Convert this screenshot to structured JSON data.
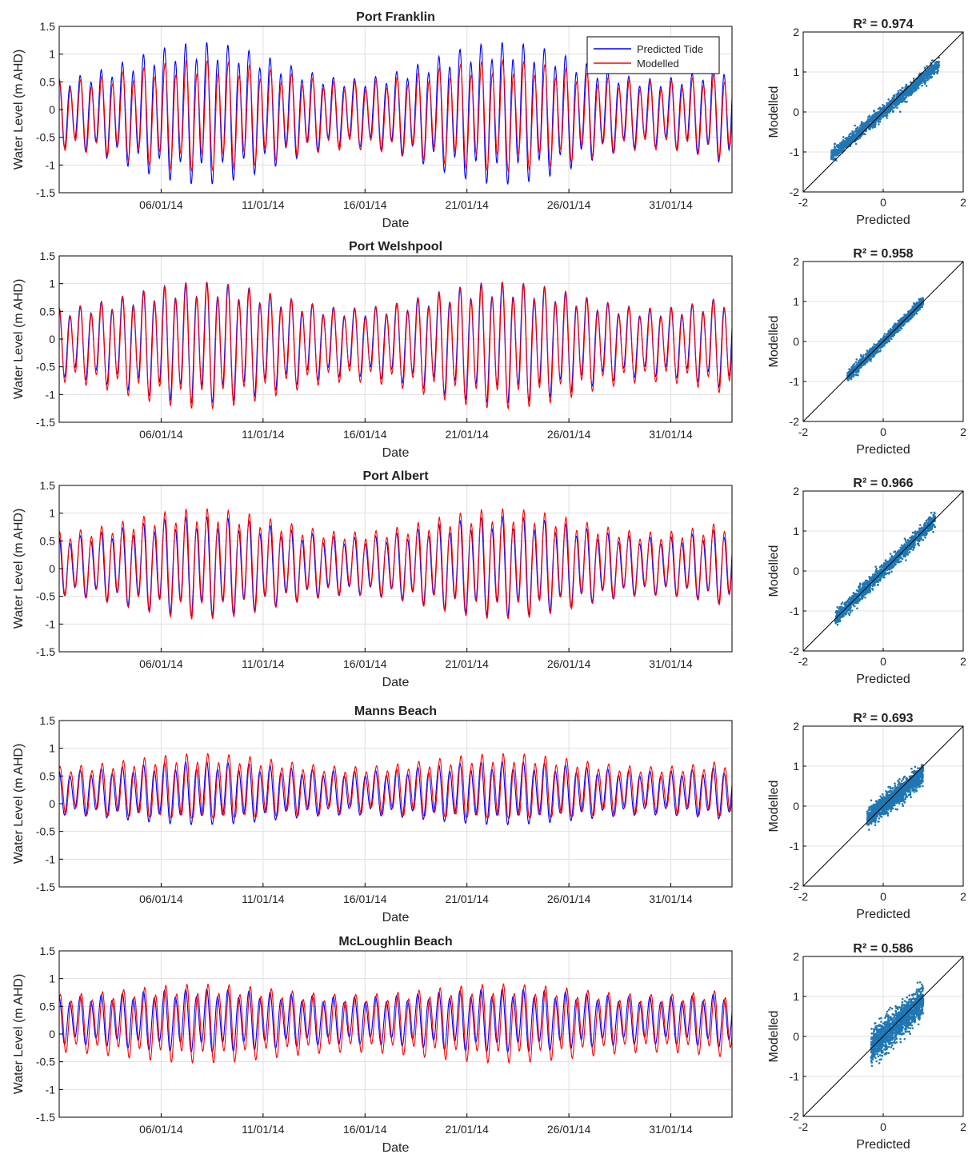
{
  "colors": {
    "predicted": "#0000ff",
    "modelled": "#ff0000",
    "scatter": "#1f77b4",
    "grid": "#e0e0e0",
    "axis": "#000000"
  },
  "legend": {
    "placement": "top-right",
    "entries": [
      "Predicted Tide",
      "Modelled"
    ]
  },
  "chart_data": [
    {
      "type": "line",
      "title": "Port Franklin",
      "xlabel": "Date",
      "ylabel": "Water Level (m AHD)",
      "xlim": [
        "01/01/14",
        "03/02/14"
      ],
      "ylim": [
        -1.5,
        1.5
      ],
      "yticks": [
        "-1.5",
        "-1",
        "-0.5",
        "0",
        "0.5",
        "1",
        "1.5"
      ],
      "xticks": [
        "06/01/14",
        "11/01/14",
        "16/01/14",
        "21/01/14",
        "26/01/14",
        "31/01/14"
      ],
      "grid": true,
      "series": [
        {
          "name": "Predicted Tide",
          "mean": -0.05,
          "amp_spring": 1.35,
          "amp_neap": 0.65,
          "period_h": 12.42,
          "phase_h": 0,
          "floor": null
        },
        {
          "name": "Modelled",
          "mean": -0.1,
          "amp_spring": 1.05,
          "amp_neap": 0.65,
          "period_h": 12.42,
          "phase_h": 0.6,
          "floor": null
        }
      ]
    },
    {
      "type": "scatter",
      "title": "R² = 0.974",
      "xlabel": "Predicted",
      "ylabel": "Modelled",
      "xlim": [
        -2,
        2
      ],
      "ylim": [
        -2,
        2
      ],
      "xticks": [
        "-2",
        "0",
        "2"
      ],
      "yticks": [
        "-2",
        "-1",
        "0",
        "1",
        "2"
      ],
      "range": [
        -1.3,
        1.4
      ],
      "slope": 0.85,
      "spread": 0.08,
      "diagonal": true
    },
    {
      "type": "line",
      "title": "Port Welshpool",
      "xlabel": "Date",
      "ylabel": "Water Level (m AHD)",
      "xlim": [
        "01/01/14",
        "03/02/14"
      ],
      "ylim": [
        -1.5,
        1.5
      ],
      "yticks": [
        "-1.5",
        "-1",
        "-0.5",
        "0",
        "0.5",
        "1",
        "1.5"
      ],
      "xticks": [
        "06/01/14",
        "11/01/14",
        "16/01/14",
        "21/01/14",
        "26/01/14",
        "31/01/14"
      ],
      "grid": true,
      "series": [
        {
          "name": "Predicted Tide",
          "mean": -0.05,
          "amp_spring": 1.15,
          "amp_neap": 0.65,
          "period_h": 12.42,
          "phase_h": 0,
          "floor": null
        },
        {
          "name": "Modelled",
          "mean": -0.1,
          "amp_spring": 1.2,
          "amp_neap": 0.7,
          "period_h": 12.42,
          "phase_h": 0.4,
          "floor": null
        }
      ]
    },
    {
      "type": "scatter",
      "title": "R² = 0.958",
      "xlabel": "Predicted",
      "ylabel": "Modelled",
      "xlim": [
        -2,
        2
      ],
      "ylim": [
        -2,
        2
      ],
      "xticks": [
        "-2",
        "0",
        "2"
      ],
      "yticks": [
        "-2",
        "-1",
        "0",
        "1",
        "2"
      ],
      "range": [
        -0.9,
        1.0
      ],
      "slope": 1.0,
      "spread": 0.06,
      "diagonal": true
    },
    {
      "type": "line",
      "title": "Port Albert",
      "xlabel": "Date",
      "ylabel": "Water Level (m AHD)",
      "xlim": [
        "01/01/14",
        "03/02/14"
      ],
      "ylim": [
        -1.5,
        1.5
      ],
      "yticks": [
        "-1.5",
        "-1",
        "-0.5",
        "0",
        "0.5",
        "1",
        "1.5"
      ],
      "xticks": [
        "06/01/14",
        "11/01/14",
        "16/01/14",
        "21/01/14",
        "26/01/14",
        "31/01/14"
      ],
      "grid": true,
      "series": [
        {
          "name": "Predicted Tide",
          "mean": 0.05,
          "amp_spring": 0.95,
          "amp_neap": 0.55,
          "period_h": 12.42,
          "phase_h": 0,
          "floor": null
        },
        {
          "name": "Modelled",
          "mean": 0.1,
          "amp_spring": 1.05,
          "amp_neap": 0.6,
          "period_h": 12.42,
          "phase_h": 0.5,
          "floor": null
        }
      ]
    },
    {
      "type": "scatter",
      "title": "R² = 0.966",
      "xlabel": "Predicted",
      "ylabel": "Modelled",
      "xlim": [
        -2,
        2
      ],
      "ylim": [
        -2,
        2
      ],
      "xticks": [
        "-2",
        "0",
        "2"
      ],
      "yticks": [
        "-2",
        "-1",
        "0",
        "1",
        "2"
      ],
      "range": [
        -1.2,
        1.3
      ],
      "slope": 1.0,
      "spread": 0.09,
      "diagonal": true
    },
    {
      "type": "line",
      "title": "Manns Beach",
      "xlabel": "Date",
      "ylabel": "Water Level (m AHD)",
      "xlim": [
        "01/01/14",
        "03/02/14"
      ],
      "ylim": [
        -1.5,
        1.5
      ],
      "yticks": [
        "-1.5",
        "-1",
        "-0.5",
        "0",
        "0.5",
        "1",
        "1.5"
      ],
      "xticks": [
        "06/01/14",
        "11/01/14",
        "16/01/14",
        "21/01/14",
        "26/01/14",
        "31/01/14"
      ],
      "grid": true,
      "series": [
        {
          "name": "Predicted Tide",
          "mean": 0.2,
          "amp_spring": 0.6,
          "amp_neap": 0.42,
          "period_h": 12.42,
          "phase_h": 0,
          "floor": null
        },
        {
          "name": "Modelled",
          "mean": 0.25,
          "amp_spring": 0.7,
          "amp_neap": 0.45,
          "period_h": 12.42,
          "phase_h": 1.2,
          "floor": -0.2
        }
      ]
    },
    {
      "type": "scatter",
      "title": "R² = 0.693",
      "xlabel": "Predicted",
      "ylabel": "Modelled",
      "xlim": [
        -2,
        2
      ],
      "ylim": [
        -2,
        2
      ],
      "xticks": [
        "-2",
        "0",
        "2"
      ],
      "yticks": [
        "-2",
        "-1",
        "0",
        "1",
        "2"
      ],
      "range": [
        -0.4,
        1.0
      ],
      "slope": 0.8,
      "spread": 0.12,
      "diagonal": true
    },
    {
      "type": "line",
      "title": "McLoughlin Beach",
      "xlabel": "Date",
      "ylabel": "Water Level (m AHD)",
      "xlim": [
        "01/01/14",
        "03/02/14"
      ],
      "ylim": [
        -1.5,
        1.5
      ],
      "yticks": [
        "-1.5",
        "-1",
        "-0.5",
        "0",
        "0.5",
        "1",
        "1.5"
      ],
      "xticks": [
        "06/01/14",
        "11/01/14",
        "16/01/14",
        "21/01/14",
        "26/01/14",
        "31/01/14"
      ],
      "grid": true,
      "series": [
        {
          "name": "Predicted Tide",
          "mean": 0.25,
          "amp_spring": 0.6,
          "amp_neap": 0.45,
          "period_h": 12.42,
          "phase_h": 0,
          "floor": null
        },
        {
          "name": "Modelled",
          "mean": 0.2,
          "amp_spring": 0.75,
          "amp_neap": 0.55,
          "period_h": 12.42,
          "phase_h": 1.5,
          "floor": null
        }
      ]
    },
    {
      "type": "scatter",
      "title": "R² = 0.586",
      "xlabel": "Predicted",
      "ylabel": "Modelled",
      "xlim": [
        -2,
        2
      ],
      "ylim": [
        -2,
        2
      ],
      "xticks": [
        "-2",
        "0",
        "2"
      ],
      "yticks": [
        "-2",
        "-1",
        "0",
        "1",
        "2"
      ],
      "range": [
        -0.3,
        1.0
      ],
      "slope": 0.9,
      "spread": 0.2,
      "diagonal": true
    }
  ]
}
